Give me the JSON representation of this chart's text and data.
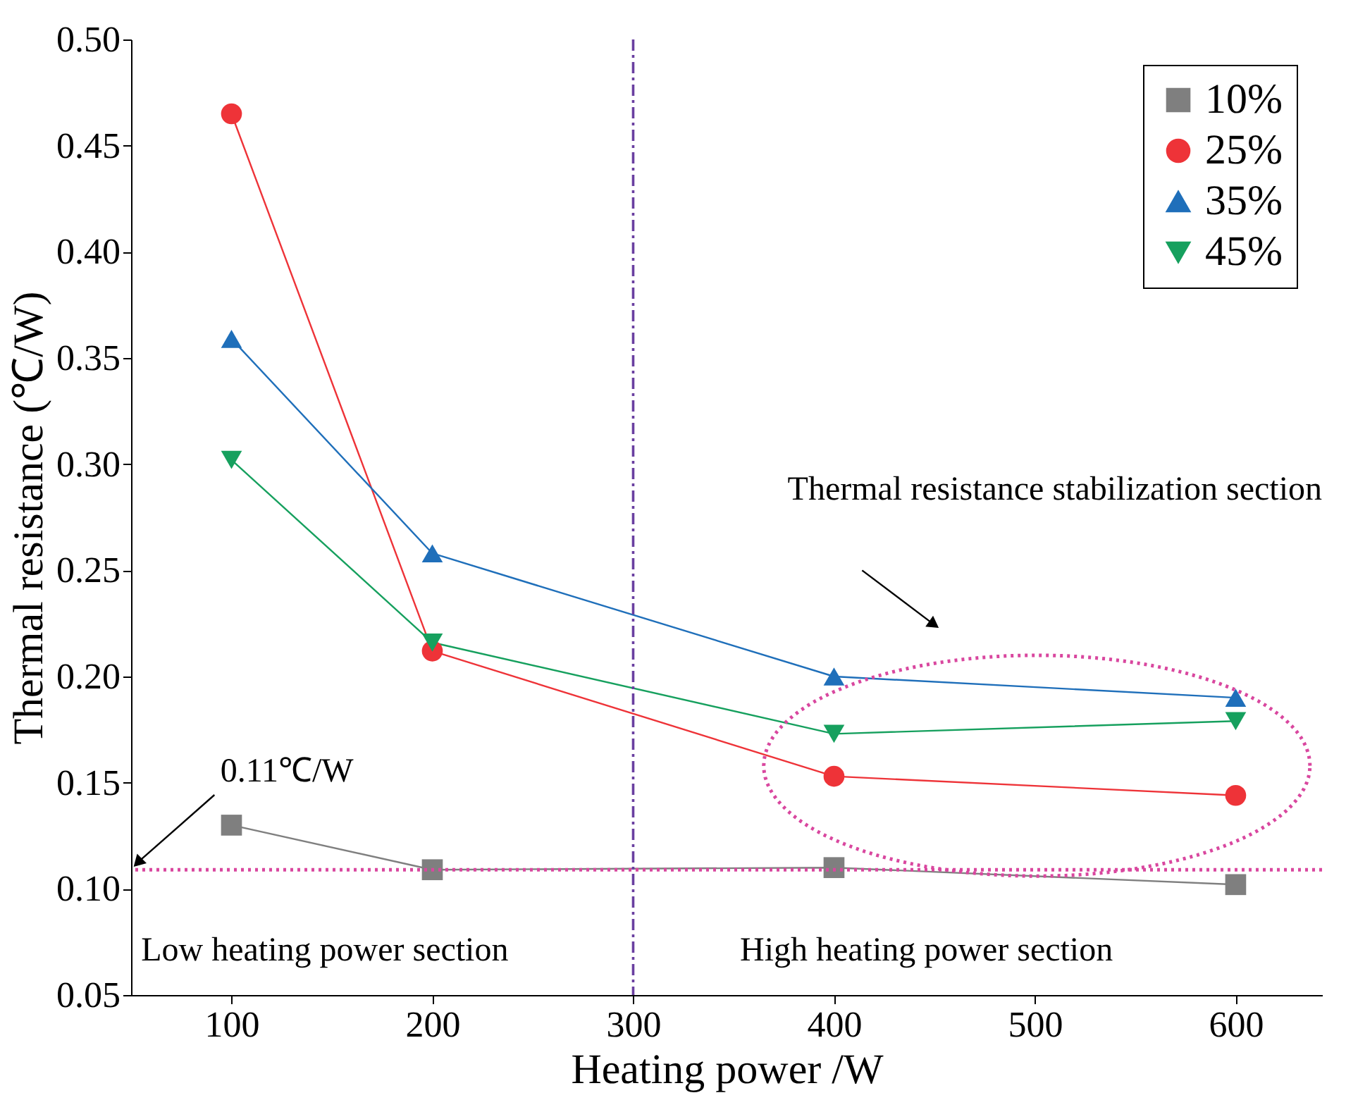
{
  "chart_data": {
    "type": "line",
    "xlabel": "Heating power /W",
    "ylabel": "Thermal resistance (℃/W)",
    "x": [
      100,
      200,
      400,
      600
    ],
    "series": [
      {
        "name": "10%",
        "color": "#7f7f7f",
        "marker": "square",
        "values": [
          0.13,
          0.109,
          0.11,
          0.102
        ]
      },
      {
        "name": "25%",
        "color": "#ee3338",
        "marker": "circle",
        "values": [
          0.465,
          0.212,
          0.153,
          0.144
        ]
      },
      {
        "name": "35%",
        "color": "#1f6fba",
        "marker": "triangle",
        "values": [
          0.359,
          0.258,
          0.2,
          0.19
        ]
      },
      {
        "name": "45%",
        "color": "#16a05e",
        "marker": "triangle-down",
        "values": [
          0.302,
          0.216,
          0.173,
          0.179
        ]
      }
    ],
    "xlim": [
      50,
      643
    ],
    "xticks": [
      100,
      200,
      300,
      400,
      500,
      600
    ],
    "ylim": [
      0.05,
      0.5
    ],
    "yticks": [
      0.05,
      {
        "value": 0.1,
        "label": "0.10"
      },
      0.15,
      {
        "value": 0.2,
        "label": "0.20"
      },
      0.25,
      {
        "value": 0.3,
        "label": "0.30"
      },
      0.35,
      {
        "value": 0.4,
        "label": "0.40"
      },
      0.45,
      {
        "value": 0.5,
        "label": "0.50"
      }
    ],
    "ref_lines": [
      {
        "axis": "y",
        "value": 0.109,
        "label": "0.11℃/W",
        "color": "#d9479f",
        "line_style": "dotted"
      },
      {
        "axis": "x",
        "value": 300,
        "color": "#6a3fa0",
        "line_style": "dashdot"
      }
    ],
    "annotations": [
      "Thermal resistance stabilization section",
      "Low heating power section",
      "High heating power section"
    ],
    "legend": "top right",
    "grid": false,
    "line_style": "solid"
  }
}
